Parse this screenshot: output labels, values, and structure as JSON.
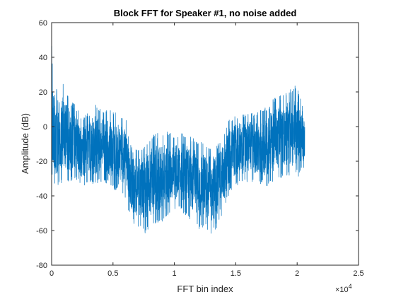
{
  "chart_data": {
    "type": "line",
    "title": "Block FFT for Speaker #1, no noise added",
    "xlabel": "FFT bin index",
    "ylabel": "Amplitude (dB)",
    "x_exponent_base": "×10",
    "x_exponent_power": "4",
    "xlim": [
      0,
      25000
    ],
    "ylim": [
      -80,
      60
    ],
    "xticks": [
      0,
      5000,
      10000,
      15000,
      20000,
      25000
    ],
    "xtick_labels": [
      "0",
      "0.5",
      "1",
      "1.5",
      "2",
      "2.5"
    ],
    "yticks": [
      -80,
      -60,
      -40,
      -20,
      0,
      20,
      40,
      60
    ],
    "ytick_labels": [
      "-80",
      "-60",
      "-40",
      "-20",
      "0",
      "20",
      "40",
      "60"
    ],
    "grid": false,
    "series": [
      {
        "color": "#0072BD",
        "x": [
          0,
          50,
          150,
          300,
          600,
          1000,
          1500,
          2000,
          2500,
          3000,
          3500,
          4000,
          4500,
          5000,
          5500,
          6000,
          6500,
          7000,
          7500,
          8000,
          8500,
          9000,
          9500,
          10000,
          10500,
          11000,
          11500,
          12000,
          12500,
          13000,
          13500,
          14000,
          14500,
          15000,
          15500,
          16000,
          16500,
          17000,
          17500,
          18000,
          18500,
          19000,
          19500,
          19900,
          20200,
          20450,
          20620
        ],
        "upper": [
          50,
          40,
          18,
          22,
          24,
          25,
          15,
          12,
          5,
          8,
          13,
          10,
          10,
          9,
          7,
          6,
          -12,
          -12,
          -10,
          -6,
          -4,
          -3,
          -3,
          -5,
          -3,
          -4,
          -6,
          -8,
          -10,
          -10,
          -10,
          -4,
          5,
          7,
          8,
          9,
          7,
          10,
          11,
          16,
          18,
          19,
          22,
          25,
          18,
          11,
          9
        ],
        "lower": [
          -20,
          -30,
          -32,
          -36,
          -34,
          -33,
          -32,
          -30,
          -36,
          -33,
          -34,
          -32,
          -33,
          -37,
          -36,
          -43,
          -55,
          -58,
          -62,
          -60,
          -57,
          -56,
          -53,
          -48,
          -48,
          -52,
          -55,
          -60,
          -58,
          -62,
          -58,
          -50,
          -38,
          -34,
          -33,
          -32,
          -32,
          -33,
          -35,
          -33,
          -30,
          -30,
          -28,
          -36,
          -26,
          -25,
          -25
        ]
      }
    ]
  }
}
